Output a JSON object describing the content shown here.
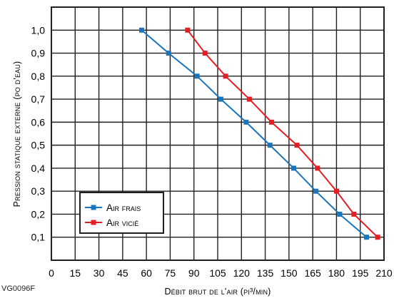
{
  "chart_data": {
    "type": "line",
    "xlabel": "Débit brut de l'air (pi³/min)",
    "ylabel": "Pression statique externe (po d'eau)",
    "x_ticks": [
      0,
      15,
      30,
      45,
      60,
      75,
      90,
      105,
      120,
      135,
      150,
      165,
      180,
      195,
      210
    ],
    "y_ticks": [
      "0,1",
      "0,2",
      "0,3",
      "0,4",
      "0,5",
      "0,6",
      "0,7",
      "0,8",
      "0,9",
      "1,0"
    ],
    "xlim": [
      0,
      210
    ],
    "ylim": [
      0,
      1.1
    ],
    "grid": true,
    "legend_position": "bottom-left",
    "series": [
      {
        "name": "Air frais",
        "color": "#1b75bc",
        "marker": "square",
        "points": [
          [
            57,
            1.0
          ],
          [
            74,
            0.9
          ],
          [
            92,
            0.8
          ],
          [
            107,
            0.7
          ],
          [
            123,
            0.6
          ],
          [
            138,
            0.5
          ],
          [
            153,
            0.4
          ],
          [
            167,
            0.3
          ],
          [
            182,
            0.2
          ],
          [
            199,
            0.1
          ]
        ]
      },
      {
        "name": "Air vicié",
        "color": "#e31e24",
        "marker": "square",
        "points": [
          [
            86,
            1.0
          ],
          [
            97,
            0.9
          ],
          [
            110,
            0.8
          ],
          [
            125,
            0.7
          ],
          [
            139,
            0.6
          ],
          [
            155,
            0.5
          ],
          [
            168,
            0.4
          ],
          [
            180,
            0.3
          ],
          [
            191,
            0.2
          ],
          [
            206,
            0.1
          ]
        ]
      }
    ]
  },
  "figure_code": "VG0096F"
}
